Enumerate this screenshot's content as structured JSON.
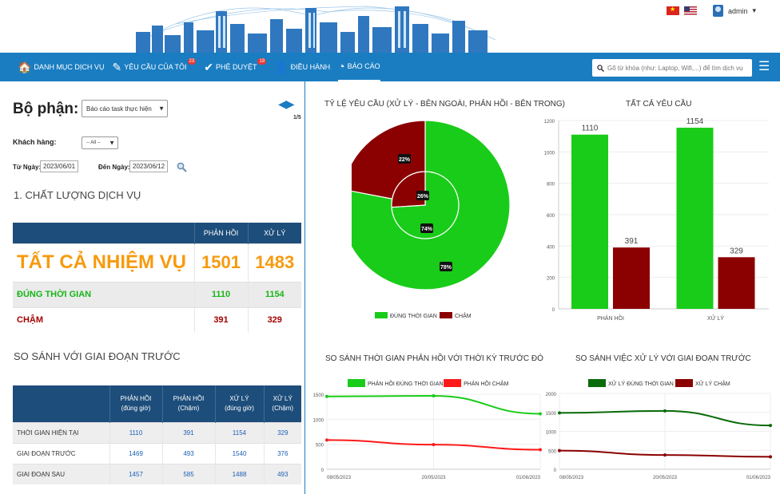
{
  "header": {
    "user": "admin",
    "user_caret": "▾"
  },
  "nav": {
    "items": [
      {
        "label": "DANH MỤC DỊCH VỤ",
        "icon": "home-icon",
        "glyph": "🏠"
      },
      {
        "label": "YÊU CẦU CỦA TÔI",
        "icon": "edit-icon",
        "glyph": "✎",
        "badge": "23"
      },
      {
        "label": "PHÊ DUYỆT",
        "icon": "check-icon",
        "glyph": "✔",
        "badge": "19"
      },
      {
        "label": "ĐIỀU HÀNH",
        "icon": "person-icon",
        "glyph": "👤"
      },
      {
        "label": "BÁO CÁO",
        "icon": "pie-chart-icon",
        "glyph": "◔",
        "active": true
      }
    ],
    "search_placeholder": "Gõ từ khóa (như: Laptop, Wifi,...) để tìm dịch vụ",
    "menu_glyph": "☰"
  },
  "filters": {
    "dept_label": "Bộ phận:",
    "dept_value": "Báo cáo task thực hiện",
    "page": "1/5",
    "customer_label": "Khách hàng:",
    "customer_value": "-- All --",
    "from_label": "Từ Ngày:",
    "from_value": "2023/06/01",
    "to_label": "Đến Ngày:",
    "to_value": "2023/06/12"
  },
  "quality": {
    "title": "1. CHẤT LƯỢNG DỊCH VỤ",
    "headers": [
      "",
      "PHẢN HỒI",
      "XỬ LÝ"
    ],
    "rows": [
      [
        "TẤT CẢ NHIỆM VỤ",
        "1501",
        "1483"
      ],
      [
        "ĐÚNG THỜI GIAN",
        "1110",
        "1154"
      ],
      [
        "CHẬM",
        "391",
        "329"
      ]
    ]
  },
  "compare": {
    "title": "SO SÁNH VỚI GIAI ĐOẠN TRƯỚC",
    "headers": [
      [
        "",
        ""
      ],
      [
        "PHẢN HỒI",
        "(đúng giờ)"
      ],
      [
        "PHẢN HỒI",
        "(Chậm)"
      ],
      [
        "XỬ LÝ",
        "(đúng giờ)"
      ],
      [
        "XỬ LÝ",
        "(Chậm)"
      ]
    ],
    "rows": [
      [
        "THỜI GIAN HIỆN TẠI",
        "1110",
        "391",
        "1154",
        "329"
      ],
      [
        "GIAI ĐOẠN TRƯỚC",
        "1469",
        "493",
        "1540",
        "376"
      ],
      [
        "GIAI ĐOẠN SAU",
        "1457",
        "585",
        "1488",
        "493"
      ]
    ]
  },
  "colors": {
    "green": "#19cc19",
    "dark_red": "#8b0000",
    "red": "#ff1a1a",
    "dark_green": "#0a6b0a",
    "nav": "#1a7dc1",
    "header_table": "#1d4d7a"
  },
  "chart_data": [
    {
      "type": "pie",
      "title": "TỶ LỆ YÊU CẦU (XỬ LÝ - Bên ngoài, PHẢN HỒI - Bên trong)",
      "legend": [
        "ĐÚNG THỜI GIAN",
        "CHẬM"
      ],
      "outer": [
        {
          "label": "ĐÚNG THỜI GIAN",
          "value": 78
        },
        {
          "label": "CHẬM",
          "value": 22
        }
      ],
      "inner": [
        {
          "label": "ĐÚNG THỜI GIAN",
          "value": 74
        },
        {
          "label": "CHẬM",
          "value": 26
        }
      ],
      "data_labels": [
        "78%",
        "22%",
        "74%",
        "26%"
      ]
    },
    {
      "type": "bar",
      "title": "TẤT CẢ YÊU CẦU",
      "categories": [
        "PHẢN HỒI",
        "XỬ LÝ"
      ],
      "series": [
        {
          "values": [
            1110,
            1154
          ]
        },
        {
          "values": [
            391,
            329
          ]
        }
      ],
      "ylim": [
        0,
        1200
      ],
      "yticks": [
        0,
        200,
        400,
        600,
        800,
        1000,
        1200
      ]
    },
    {
      "type": "line",
      "title": "SO SÁNH THỜI GIAN PHẢN HỒI VỚI THỜI KỲ TRƯỚC ĐÓ",
      "x": [
        "08/05/2023",
        "20/05/2023",
        "01/06/2023"
      ],
      "series": [
        {
          "name": "PHẢN HỒI ĐÚNG THỜI GIAN",
          "values": [
            1457,
            1469,
            1110
          ]
        },
        {
          "name": "PHẢN HỒI CHẬM",
          "values": [
            585,
            493,
            391
          ]
        }
      ],
      "ylim": [
        0,
        1500
      ],
      "yticks": [
        0,
        500,
        1000,
        1500
      ]
    },
    {
      "type": "line",
      "title": "SO SÁNH VIỆC XỬ LÝ VỚI GIAI ĐOẠN TRƯỚC",
      "x": [
        "08/05/2023",
        "20/05/2023",
        "01/06/2023"
      ],
      "series": [
        {
          "name": "XỬ LÝ ĐÚNG THỜI GIAN",
          "values": [
            1488,
            1540,
            1154
          ]
        },
        {
          "name": "XỬ LÝ CHẬM",
          "values": [
            493,
            376,
            329
          ]
        }
      ],
      "ylim": [
        0,
        2000
      ],
      "yticks": [
        0,
        500,
        1000,
        1500,
        2000
      ]
    }
  ]
}
